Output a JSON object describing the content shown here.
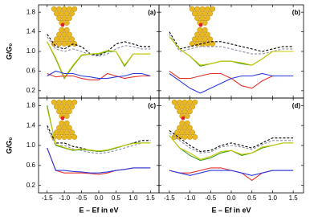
{
  "chart_data": [
    {
      "type": "line",
      "title": "(a)",
      "ylabel": "G/G₀",
      "x": [
        -1.5,
        -1.25,
        -1,
        -0.75,
        -0.5,
        -0.25,
        0,
        0.25,
        0.5,
        0.75,
        1,
        1.25,
        1.5
      ],
      "series": [
        {
          "color": "#000000",
          "dash": true,
          "values": [
            1.35,
            1.1,
            1.05,
            1.15,
            1.1,
            0.95,
            0.92,
            1.0,
            1.15,
            1.2,
            1.15,
            1.1,
            1.1
          ]
        },
        {
          "color": "#8a8aa8",
          "dash": true,
          "values": [
            1.3,
            1.05,
            1.0,
            1.05,
            1.0,
            0.93,
            0.9,
            0.95,
            1.05,
            1.12,
            1.1,
            1.05,
            1.05
          ]
        },
        {
          "color": "#3a9a1a",
          "dash": false,
          "values": [
            1.2,
            0.85,
            0.45,
            0.7,
            0.92,
            0.95,
            0.95,
            1.0,
            1.0,
            0.7,
            0.95,
            0.95,
            0.95
          ]
        },
        {
          "color": "#c8c800",
          "dash": false,
          "values": [
            1.2,
            0.87,
            0.47,
            0.72,
            0.93,
            0.95,
            0.96,
            1.02,
            1.0,
            0.72,
            0.95,
            0.95,
            0.95
          ]
        },
        {
          "color": "#e8302a",
          "dash": false,
          "values": [
            0.55,
            0.48,
            0.5,
            0.5,
            0.45,
            0.42,
            0.42,
            0.55,
            0.5,
            0.45,
            0.48,
            0.5,
            0.5
          ]
        },
        {
          "color": "#2a3ae0",
          "dash": false,
          "values": [
            0.5,
            0.6,
            0.55,
            0.55,
            0.5,
            0.48,
            0.45,
            0.45,
            0.48,
            0.5,
            0.55,
            0.55,
            0.5
          ]
        }
      ],
      "xlim": [
        -1.75,
        1.75
      ],
      "xticks": [
        -1.5,
        -1,
        -0.5,
        0,
        0.5,
        1,
        1.5
      ],
      "xtick_labels": false,
      "ylim": [
        0.05,
        1.95
      ],
      "yticks": [
        0.2,
        0.6,
        {
          "value": 1,
          "label": "1.0"
        },
        1.4,
        1.8
      ],
      "ytick_labels": true
    },
    {
      "type": "line",
      "title": "(b)",
      "x": [
        -1.5,
        -1.25,
        -1,
        -0.75,
        -0.5,
        -0.25,
        0,
        0.25,
        0.5,
        0.75,
        1,
        1.25,
        1.5
      ],
      "series": [
        {
          "color": "#000000",
          "dash": true,
          "values": [
            1.4,
            1.05,
            1.1,
            1.15,
            1.2,
            1.2,
            1.15,
            1.1,
            1.05,
            1.0,
            1.05,
            1.1,
            1.1
          ]
        },
        {
          "color": "#8a8aa8",
          "dash": true,
          "values": [
            1.35,
            1.0,
            1.05,
            1.1,
            1.1,
            1.1,
            1.05,
            1.0,
            0.95,
            0.95,
            1.0,
            1.05,
            1.05
          ]
        },
        {
          "color": "#3a9a1a",
          "dash": false,
          "values": [
            1.3,
            1.05,
            0.9,
            0.7,
            0.75,
            0.8,
            0.8,
            0.75,
            0.72,
            0.85,
            1.0,
            1.0,
            1.0
          ]
        },
        {
          "color": "#c8c800",
          "dash": false,
          "values": [
            1.3,
            1.05,
            0.9,
            0.72,
            0.75,
            0.8,
            0.8,
            0.77,
            0.72,
            0.85,
            1.0,
            1.0,
            1.0
          ]
        },
        {
          "color": "#e8302a",
          "dash": false,
          "values": [
            0.6,
            0.45,
            0.45,
            0.5,
            0.55,
            0.55,
            0.45,
            0.3,
            0.25,
            0.4,
            0.5,
            0.5,
            0.5
          ]
        },
        {
          "color": "#2a3ae0",
          "dash": false,
          "values": [
            0.55,
            0.4,
            0.25,
            0.15,
            0.25,
            0.35,
            0.45,
            0.5,
            0.5,
            0.55,
            0.5,
            0.5,
            0.5
          ]
        }
      ],
      "xlim": [
        -1.75,
        1.75
      ],
      "xticks": [
        -1.5,
        -1,
        -0.5,
        0,
        0.5,
        1,
        1.5
      ],
      "xtick_labels": false,
      "ylim": [
        0.05,
        1.95
      ],
      "yticks": [
        0.2,
        0.6,
        1,
        1.4,
        1.8
      ],
      "ytick_labels": false
    },
    {
      "type": "line",
      "title": "(c)",
      "ylabel": "G/G₀",
      "xlabel": "E – Ef in eV",
      "x": [
        -1.5,
        -1.25,
        -1,
        -0.75,
        -0.5,
        -0.25,
        0,
        0.25,
        0.5,
        0.75,
        1,
        1.25,
        1.5
      ],
      "series": [
        {
          "color": "#000000",
          "dash": true,
          "values": [
            1.4,
            1.05,
            1.05,
            0.98,
            0.95,
            0.9,
            0.88,
            0.9,
            0.95,
            1.0,
            1.05,
            1.1,
            1.1
          ]
        },
        {
          "color": "#8a8aa8",
          "dash": true,
          "values": [
            1.35,
            1.0,
            1.0,
            0.93,
            0.9,
            0.86,
            0.84,
            0.86,
            0.9,
            0.95,
            1.0,
            1.05,
            1.05
          ]
        },
        {
          "color": "#3a9a1a",
          "dash": false,
          "values": [
            1.8,
            1.0,
            0.95,
            0.9,
            0.92,
            0.9,
            0.88,
            0.9,
            0.95,
            1.0,
            1.05,
            1.05,
            1.05
          ]
        },
        {
          "color": "#c8c800",
          "dash": false,
          "values": [
            1.75,
            1.02,
            0.96,
            0.91,
            0.93,
            0.91,
            0.89,
            0.91,
            0.96,
            1.0,
            1.04,
            1.05,
            1.05
          ]
        },
        {
          "color": "#e8302a",
          "dash": false,
          "values": [
            0.95,
            0.5,
            0.45,
            0.45,
            0.45,
            0.44,
            0.42,
            0.45,
            0.5,
            0.52,
            0.55,
            0.55,
            0.55
          ]
        },
        {
          "color": "#2a3ae0",
          "dash": false,
          "values": [
            0.95,
            0.5,
            0.5,
            0.48,
            0.47,
            0.45,
            0.45,
            0.47,
            0.5,
            0.52,
            0.55,
            0.55,
            0.55
          ]
        }
      ],
      "xlim": [
        -1.75,
        1.75
      ],
      "xticks": [
        -1.5,
        {
          "value": -1,
          "label": "-1.0"
        },
        -0.5,
        {
          "value": 0,
          "label": "0.0"
        },
        0.5,
        {
          "value": 1,
          "label": "1.0"
        },
        1.5
      ],
      "xtick_labels": true,
      "ylim": [
        0.05,
        1.95
      ],
      "yticks": [
        0.2,
        0.6,
        {
          "value": 1,
          "label": "1.0"
        },
        1.4,
        1.8
      ],
      "ytick_labels": true
    },
    {
      "type": "line",
      "title": "(d)",
      "xlabel": "E – Ef in eV",
      "x": [
        -1.5,
        -1.25,
        -1,
        -0.75,
        -0.5,
        -0.25,
        0,
        0.25,
        0.5,
        0.75,
        1,
        1.25,
        1.5
      ],
      "series": [
        {
          "color": "#000000",
          "dash": true,
          "values": [
            1.3,
            1.15,
            1.0,
            0.88,
            0.9,
            1.0,
            1.05,
            1.0,
            0.95,
            1.05,
            1.15,
            1.15,
            1.15
          ]
        },
        {
          "color": "#8a8aa8",
          "dash": true,
          "values": [
            1.25,
            1.1,
            0.95,
            0.85,
            0.87,
            0.97,
            1.0,
            0.97,
            0.92,
            1.02,
            1.1,
            1.1,
            1.1
          ]
        },
        {
          "color": "#3a9a1a",
          "dash": false,
          "values": [
            1.2,
            0.95,
            0.8,
            0.7,
            0.75,
            0.85,
            0.9,
            0.8,
            0.85,
            0.95,
            1.0,
            1.05,
            1.05
          ]
        },
        {
          "color": "#c8c800",
          "dash": false,
          "values": [
            1.2,
            0.95,
            0.85,
            0.72,
            0.78,
            0.88,
            0.9,
            0.82,
            0.85,
            0.97,
            1.0,
            1.05,
            1.05
          ]
        },
        {
          "color": "#e8302a",
          "dash": false,
          "values": [
            0.5,
            0.45,
            0.45,
            0.5,
            0.55,
            0.55,
            0.5,
            0.45,
            0.3,
            0.45,
            0.5,
            0.5,
            0.5
          ]
        },
        {
          "color": "#2a3ae0",
          "dash": false,
          "values": [
            0.5,
            0.45,
            0.4,
            0.45,
            0.5,
            0.5,
            0.5,
            0.45,
            0.4,
            0.45,
            0.5,
            0.5,
            0.5
          ]
        }
      ],
      "xlim": [
        -1.75,
        1.75
      ],
      "xticks": [
        -1.5,
        {
          "value": -1,
          "label": "-1.0"
        },
        -0.5,
        {
          "value": 0,
          "label": "0.0"
        },
        0.5,
        {
          "value": 1,
          "label": "1.0"
        },
        1.5
      ],
      "xtick_labels": true,
      "ylim": [
        0.05,
        1.95
      ],
      "yticks": [
        0.2,
        0.6,
        1,
        1.4,
        1.8
      ],
      "ytick_labels": false
    }
  ]
}
